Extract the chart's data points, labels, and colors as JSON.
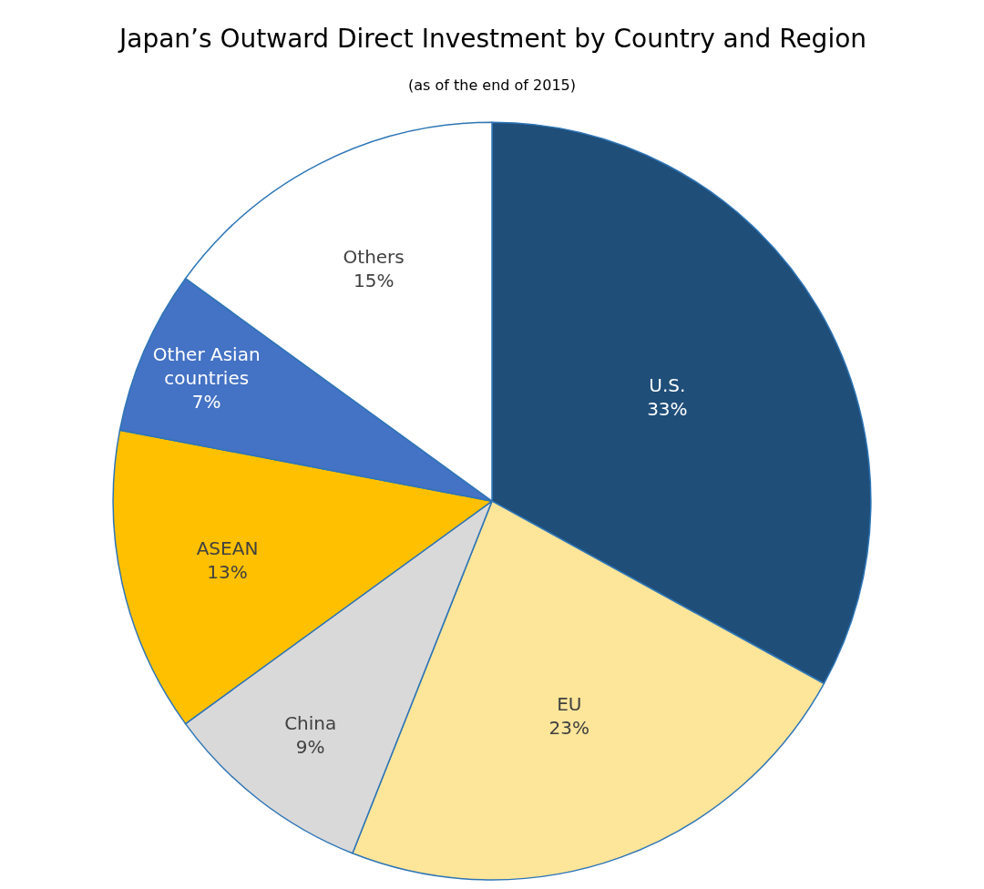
{
  "chart_data": {
    "type": "pie",
    "title": "Japan’s Outward Direct Investment by Country and Region",
    "subtitle": "(as of the end of 2015)",
    "categories": [
      "U.S.",
      "EU",
      "China",
      "ASEAN",
      "Other Asian countries",
      "Others"
    ],
    "values": [
      33,
      23,
      9,
      13,
      7,
      15
    ],
    "value_labels": [
      "33%",
      "23%",
      "9%",
      "13%",
      "7%",
      "15%"
    ],
    "colors": [
      "#1f4e79",
      "#fde59a",
      "#d9d9d9",
      "#ffc000",
      "#4472c4",
      "#ffffff"
    ],
    "legend": false
  }
}
